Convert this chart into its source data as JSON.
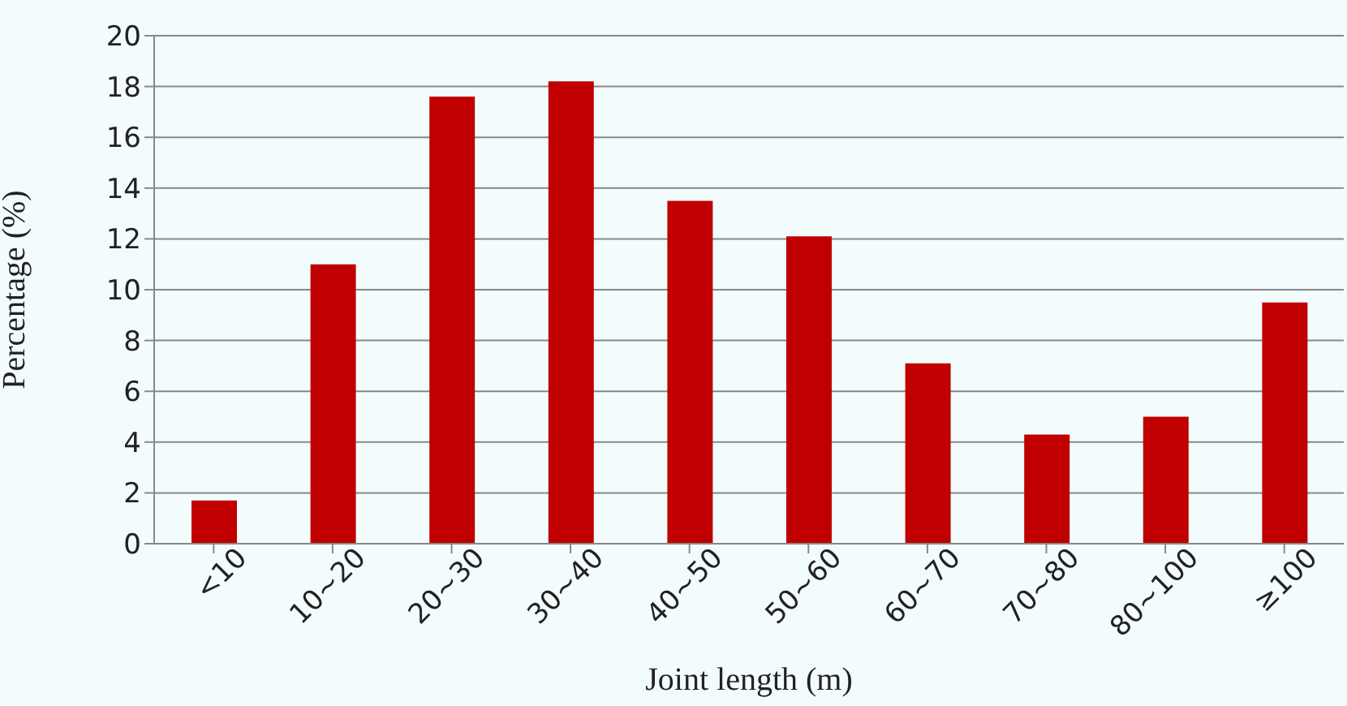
{
  "chart_data": {
    "type": "bar",
    "xlabel": "Joint length (m)",
    "ylabel": "Percentage (%)",
    "categories": [
      "<10",
      "10~20",
      "20~30",
      "30~40",
      "40~50",
      "50~60",
      "60~70",
      "70~80",
      "80~100",
      "≥100"
    ],
    "values": [
      1.7,
      11.0,
      17.6,
      18.2,
      13.5,
      12.1,
      7.1,
      4.3,
      5.0,
      9.5
    ],
    "color": "#c00000",
    "ylim": [
      0,
      20
    ],
    "yticks": [
      0,
      2,
      4,
      6,
      8,
      10,
      12,
      14,
      16,
      18,
      20
    ],
    "grid": "y",
    "legend": false
  }
}
